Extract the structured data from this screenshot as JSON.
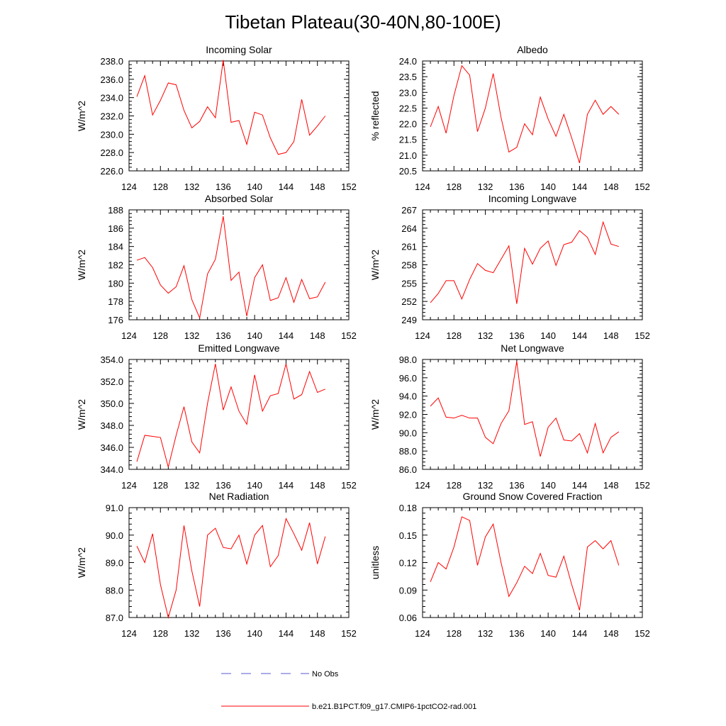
{
  "title": "Tibetan Plateau(30-40N,80-100E)",
  "legend": {
    "placement": "bottom-center",
    "items": [
      {
        "label": "No Obs",
        "color": "#5a5ad0",
        "style": "dashed"
      },
      {
        "label": "b.e21.B1PCT.f09_g17.CMIP6-1pctCO2-rad.001",
        "color": "#ff0000",
        "style": "solid"
      }
    ]
  },
  "chart_data": [
    {
      "type": "line",
      "title": "Incoming Solar",
      "ylabel": "W/m^2",
      "xlim": [
        124,
        152
      ],
      "xticks": [
        "124",
        "128",
        "132",
        "136",
        "140",
        "144",
        "148",
        "152"
      ],
      "ylim": [
        226,
        238
      ],
      "yticks": [
        "226.0",
        "228.0",
        "230.0",
        "232.0",
        "234.0",
        "236.0",
        "238.0"
      ],
      "series": [
        {
          "color": "#ff0000",
          "x": [
            125,
            126,
            127,
            128,
            129,
            130,
            131,
            132,
            133,
            134,
            135,
            136,
            137,
            138,
            139,
            140,
            141,
            142,
            143,
            144,
            145,
            146,
            147,
            148,
            149
          ],
          "y": [
            234.1,
            236.4,
            232.1,
            233.7,
            235.6,
            235.4,
            232.6,
            230.7,
            231.4,
            233.0,
            231.8,
            238.1,
            231.3,
            231.5,
            228.9,
            232.4,
            232.1,
            229.6,
            227.8,
            228.0,
            229.2,
            233.8,
            229.9,
            230.9,
            232.0
          ]
        }
      ]
    },
    {
      "type": "line",
      "title": "Albedo",
      "ylabel": "% reflected",
      "xlim": [
        124,
        152
      ],
      "xticks": [
        "124",
        "128",
        "132",
        "136",
        "140",
        "144",
        "148",
        "152"
      ],
      "ylim": [
        20.5,
        24.0
      ],
      "yticks": [
        "20.5",
        "21.0",
        "21.5",
        "22.0",
        "22.5",
        "23.0",
        "23.5",
        "24.0"
      ],
      "series": [
        {
          "color": "#ff0000",
          "x": [
            125,
            126,
            127,
            128,
            129,
            130,
            131,
            132,
            133,
            134,
            135,
            136,
            137,
            138,
            139,
            140,
            141,
            142,
            143,
            144,
            145,
            146,
            147,
            148,
            149
          ],
          "y": [
            21.9,
            22.55,
            21.7,
            22.9,
            23.85,
            23.55,
            21.75,
            22.5,
            23.6,
            22.2,
            21.1,
            21.25,
            22.0,
            21.65,
            22.85,
            22.15,
            21.6,
            22.3,
            21.55,
            20.75,
            22.3,
            22.75,
            22.3,
            22.55,
            22.3
          ]
        }
      ]
    },
    {
      "type": "line",
      "title": "Absorbed Solar",
      "ylabel": "W/m^2",
      "xlim": [
        124,
        152
      ],
      "xticks": [
        "124",
        "128",
        "132",
        "136",
        "140",
        "144",
        "148",
        "152"
      ],
      "ylim": [
        176,
        188
      ],
      "yticks": [
        "176",
        "178",
        "180",
        "182",
        "184",
        "186",
        "188"
      ],
      "series": [
        {
          "color": "#ff0000",
          "x": [
            125,
            126,
            127,
            128,
            129,
            130,
            131,
            132,
            133,
            134,
            135,
            136,
            137,
            138,
            139,
            140,
            141,
            142,
            143,
            144,
            145,
            146,
            147,
            148,
            149
          ],
          "y": [
            182.5,
            182.8,
            181.7,
            179.8,
            178.9,
            179.6,
            181.9,
            178.2,
            176.2,
            181.0,
            182.6,
            187.3,
            180.3,
            181.2,
            176.4,
            180.6,
            182.0,
            178.1,
            178.4,
            180.6,
            177.9,
            180.4,
            178.3,
            178.5,
            180.1
          ]
        }
      ]
    },
    {
      "type": "line",
      "title": "Incoming Longwave",
      "ylabel": "W/m^2",
      "xlim": [
        124,
        152
      ],
      "xticks": [
        "124",
        "128",
        "132",
        "136",
        "140",
        "144",
        "148",
        "152"
      ],
      "ylim": [
        249,
        267
      ],
      "yticks": [
        "249",
        "252",
        "255",
        "258",
        "261",
        "264",
        "267"
      ],
      "series": [
        {
          "color": "#ff0000",
          "x": [
            125,
            126,
            127,
            128,
            129,
            130,
            131,
            132,
            133,
            134,
            135,
            136,
            137,
            138,
            139,
            140,
            141,
            142,
            143,
            144,
            145,
            146,
            147,
            148,
            149
          ],
          "y": [
            251.8,
            253.3,
            255.4,
            255.4,
            252.4,
            255.6,
            258.2,
            257.1,
            256.7,
            258.9,
            261.1,
            251.6,
            260.7,
            258.1,
            260.7,
            261.9,
            257.9,
            261.3,
            261.7,
            263.6,
            262.5,
            259.7,
            265.0,
            261.4,
            261.0
          ]
        }
      ]
    },
    {
      "type": "line",
      "title": "Emitted Longwave",
      "ylabel": "W/m^2",
      "xlim": [
        124,
        152
      ],
      "xticks": [
        "124",
        "128",
        "132",
        "136",
        "140",
        "144",
        "148",
        "152"
      ],
      "ylim": [
        344,
        354
      ],
      "yticks": [
        "344.0",
        "346.0",
        "348.0",
        "350.0",
        "352.0",
        "354.0"
      ],
      "series": [
        {
          "color": "#ff0000",
          "x": [
            125,
            126,
            127,
            128,
            129,
            130,
            131,
            132,
            133,
            134,
            135,
            136,
            137,
            138,
            139,
            140,
            141,
            142,
            143,
            144,
            145,
            146,
            147,
            148,
            149
          ],
          "y": [
            344.7,
            347.1,
            347.0,
            346.9,
            344.2,
            347.1,
            349.7,
            346.5,
            345.5,
            350.0,
            353.6,
            349.4,
            351.5,
            349.3,
            348.1,
            352.6,
            349.3,
            350.7,
            350.9,
            353.6,
            350.4,
            350.8,
            352.9,
            351.0,
            351.3
          ]
        }
      ]
    },
    {
      "type": "line",
      "title": "Net Longwave",
      "ylabel": "W/m^2",
      "xlim": [
        124,
        152
      ],
      "xticks": [
        "124",
        "128",
        "132",
        "136",
        "140",
        "144",
        "148",
        "152"
      ],
      "ylim": [
        86,
        98
      ],
      "yticks": [
        "86.0",
        "88.0",
        "90.0",
        "92.0",
        "94.0",
        "96.0",
        "98.0"
      ],
      "series": [
        {
          "color": "#ff0000",
          "x": [
            125,
            126,
            127,
            128,
            129,
            130,
            131,
            132,
            133,
            134,
            135,
            136,
            137,
            138,
            139,
            140,
            141,
            142,
            143,
            144,
            145,
            146,
            147,
            148,
            149
          ],
          "y": [
            92.9,
            93.8,
            91.7,
            91.6,
            91.9,
            91.6,
            91.6,
            89.5,
            88.8,
            91.0,
            92.4,
            97.8,
            90.9,
            91.2,
            87.4,
            90.6,
            91.6,
            89.2,
            89.1,
            89.9,
            87.8,
            91.0,
            87.8,
            89.5,
            90.1
          ]
        }
      ]
    },
    {
      "type": "line",
      "title": "Net Radiation",
      "ylabel": "W/m^2",
      "xlim": [
        124,
        152
      ],
      "xticks": [
        "124",
        "128",
        "132",
        "136",
        "140",
        "144",
        "148",
        "152"
      ],
      "ylim": [
        87,
        91
      ],
      "yticks": [
        "87.0",
        "88.0",
        "89.0",
        "90.0",
        "91.0"
      ],
      "series": [
        {
          "color": "#ff0000",
          "x": [
            125,
            126,
            127,
            128,
            129,
            130,
            131,
            132,
            133,
            134,
            135,
            136,
            137,
            138,
            139,
            140,
            141,
            142,
            143,
            144,
            145,
            146,
            147,
            148,
            149
          ],
          "y": [
            89.6,
            89.0,
            90.05,
            88.2,
            87.0,
            88.0,
            90.35,
            88.7,
            87.4,
            90.0,
            90.25,
            89.55,
            89.5,
            90.0,
            88.95,
            90.0,
            90.35,
            88.85,
            89.25,
            90.6,
            90.05,
            89.45,
            90.45,
            88.95,
            89.95
          ]
        }
      ]
    },
    {
      "type": "line",
      "title": "Ground Snow Covered Fraction",
      "ylabel": "unitless",
      "xlim": [
        124,
        152
      ],
      "xticks": [
        "124",
        "128",
        "132",
        "136",
        "140",
        "144",
        "148",
        "152"
      ],
      "ylim": [
        0.06,
        0.18
      ],
      "yticks": [
        "0.06",
        "0.09",
        "0.12",
        "0.15",
        "0.18"
      ],
      "series": [
        {
          "color": "#ff0000",
          "x": [
            125,
            126,
            127,
            128,
            129,
            130,
            131,
            132,
            133,
            134,
            135,
            136,
            137,
            138,
            139,
            140,
            141,
            142,
            143,
            144,
            145,
            146,
            147,
            148,
            149
          ],
          "y": [
            0.099,
            0.12,
            0.113,
            0.137,
            0.17,
            0.166,
            0.117,
            0.148,
            0.162,
            0.12,
            0.083,
            0.098,
            0.116,
            0.108,
            0.13,
            0.106,
            0.104,
            0.127,
            0.096,
            0.068,
            0.137,
            0.144,
            0.135,
            0.144,
            0.117
          ]
        }
      ]
    }
  ]
}
